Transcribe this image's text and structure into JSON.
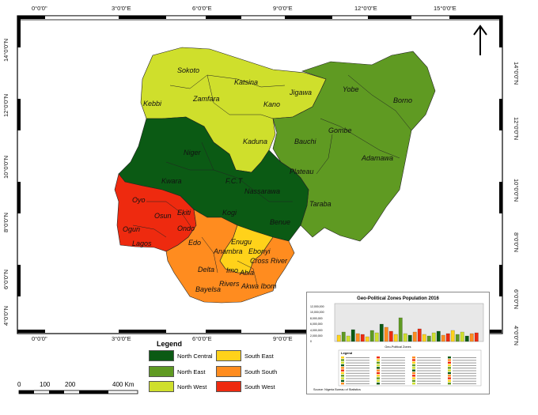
{
  "map": {
    "lon_labels": [
      "0°0'0\"",
      "3°0'0\"E",
      "6°0'0\"E",
      "9°0'0\"E",
      "12°0'0\"E",
      "15°0'0\"E"
    ],
    "lat_labels": [
      "14°0'0\"N",
      "12°0'0\"N",
      "10°0'0\"N",
      "8°0'0\"N",
      "6°0'0\"N",
      "4°0'0\"N"
    ],
    "states": {
      "sokoto": "Sokoto",
      "katsina": "Katsina",
      "jigawa": "Jigawa",
      "yobe": "Yobe",
      "borno": "Borno",
      "kebbi": "Kebbi",
      "zamfara": "Zamfara",
      "kano": "Kano",
      "gombe": "Gombe",
      "bauchi": "Bauchi",
      "niger": "Niger",
      "kaduna": "Kaduna",
      "adamawa": "Adamawa",
      "plateau": "Plateau",
      "kwara": "Kwara",
      "fct": "F.C.T",
      "nassarawa": "Nassarawa",
      "taraba": "Taraba",
      "oyo": "Oyo",
      "ekiti": "Ekiti",
      "osun": "Osun",
      "kogi": "Kogi",
      "benue": "Benue",
      "ogun": "Ogun",
      "ondo": "Ondo",
      "lagos": "Lagos",
      "edo": "Edo",
      "enugu": "Enugu",
      "anambra": "Anambra",
      "ebonyi": "Ebonyi",
      "cross_river": "Cross River",
      "delta": "Delta",
      "imo": "Imo",
      "abia": "Abia",
      "rivers": "Rivers",
      "akwa_ibom": "Akwa Ibom",
      "bayelsa": "Bayelsa"
    },
    "colors": {
      "north_central": "#0b5a14",
      "north_east": "#5f9a22",
      "north_west": "#cfdf2c",
      "south_east": "#ffd21a",
      "south_south": "#ff8c1f",
      "south_west": "#ee2a0f"
    }
  },
  "legend": {
    "title": "Legend",
    "items": [
      "North Central",
      "North East",
      "North West",
      "South East",
      "South South",
      "South West"
    ]
  },
  "scale": {
    "labels": [
      "0",
      "100",
      "200",
      "400 Km"
    ]
  },
  "inset": {
    "title": "Geo-Political Zones Population 2016",
    "x_title": "Geo-Political Zones",
    "legend_title": "Legend",
    "source": "Source: Nigeria Bureau of Statistics",
    "y_ticks": [
      "12,000,000",
      "10,000,000",
      "8,000,000",
      "6,000,000",
      "4,000,000",
      "2,000,000",
      "0"
    ]
  }
}
